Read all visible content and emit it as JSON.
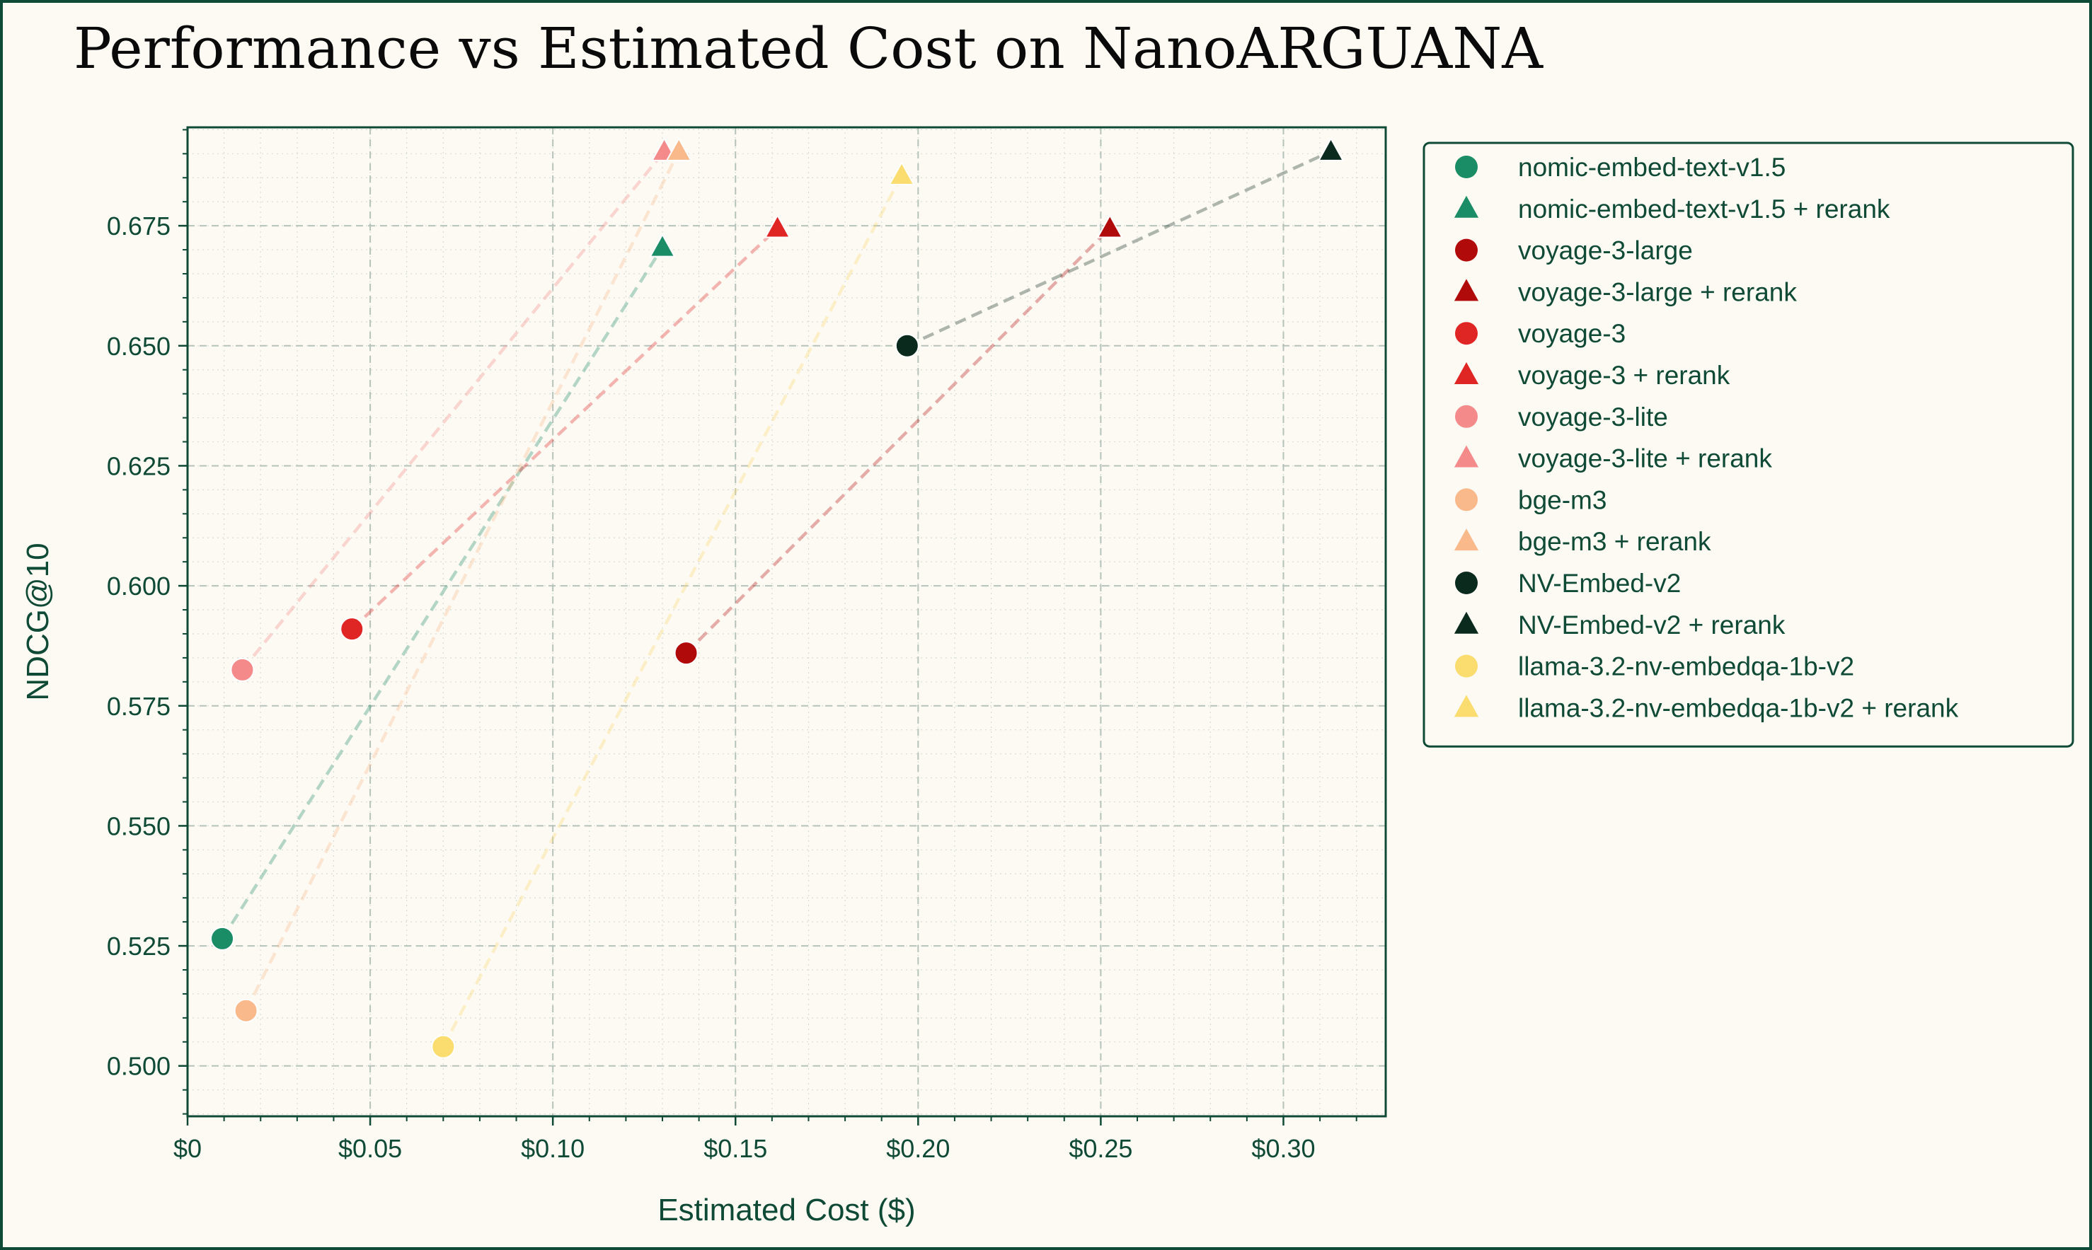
{
  "chart_data": {
    "type": "scatter",
    "title": "Performance vs Estimated Cost on NanoARGUANA",
    "xlabel": "Estimated Cost ($)",
    "ylabel": "NDCG@10",
    "xlim": [
      0,
      0.328
    ],
    "ylim": [
      0.4895,
      0.6955
    ],
    "x_ticks": [
      0,
      0.05,
      0.1,
      0.15,
      0.2,
      0.25,
      0.3
    ],
    "x_tick_labels": [
      "$0",
      "$0.05",
      "$0.10",
      "$0.15",
      "$0.20",
      "$0.25",
      "$0.30"
    ],
    "y_ticks": [
      0.5,
      0.525,
      0.55,
      0.575,
      0.6,
      0.625,
      0.65,
      0.675
    ],
    "y_tick_labels": [
      "0.500",
      "0.525",
      "0.550",
      "0.575",
      "0.600",
      "0.625",
      "0.650",
      "0.675"
    ],
    "grid": true,
    "legend_position": "outside-right",
    "series": [
      {
        "name": "nomic-embed-text-v1.5",
        "marker": "circle",
        "color": "#1a8c66",
        "x": 0.0095,
        "y": 0.5265
      },
      {
        "name": "nomic-embed-text-v1.5 + rerank",
        "marker": "triangle",
        "color": "#1a8c66",
        "x": 0.13,
        "y": 0.6705
      },
      {
        "name": "voyage-3-large",
        "marker": "circle",
        "color": "#b00a0a",
        "x": 0.1365,
        "y": 0.586
      },
      {
        "name": "voyage-3-large + rerank",
        "marker": "triangle",
        "color": "#b00a0a",
        "x": 0.2525,
        "y": 0.6745
      },
      {
        "name": "voyage-3",
        "marker": "circle",
        "color": "#e02525",
        "x": 0.045,
        "y": 0.591
      },
      {
        "name": "voyage-3 + rerank",
        "marker": "triangle",
        "color": "#e02525",
        "x": 0.1615,
        "y": 0.6745
      },
      {
        "name": "voyage-3-lite",
        "marker": "circle",
        "color": "#f48a8a",
        "x": 0.015,
        "y": 0.5825
      },
      {
        "name": "voyage-3-lite + rerank",
        "marker": "triangle",
        "color": "#f48a8a",
        "x": 0.1305,
        "y": 0.6905
      },
      {
        "name": "bge-m3",
        "marker": "circle",
        "color": "#f9b98a",
        "x": 0.016,
        "y": 0.5115
      },
      {
        "name": "bge-m3 + rerank",
        "marker": "triangle",
        "color": "#f9b98a",
        "x": 0.1345,
        "y": 0.6905
      },
      {
        "name": "NV-Embed-v2",
        "marker": "circle",
        "color": "#0b2a1e",
        "x": 0.197,
        "y": 0.65
      },
      {
        "name": "NV-Embed-v2 + rerank",
        "marker": "triangle",
        "color": "#0b2a1e",
        "x": 0.313,
        "y": 0.6905
      },
      {
        "name": "llama-3.2-nv-embedqa-1b-v2",
        "marker": "circle",
        "color": "#fbdc6e",
        "x": 0.07,
        "y": 0.504
      },
      {
        "name": "llama-3.2-nv-embedqa-1b-v2 + rerank",
        "marker": "triangle",
        "color": "#fbdc6e",
        "x": 0.1955,
        "y": 0.6855
      }
    ],
    "connections": [
      [
        0,
        1
      ],
      [
        2,
        3
      ],
      [
        4,
        5
      ],
      [
        6,
        7
      ],
      [
        8,
        9
      ],
      [
        10,
        11
      ],
      [
        12,
        13
      ]
    ]
  },
  "colors": {
    "frame": "#0e4a35",
    "background": "#fdf9f3",
    "grid": "#cdd6cf",
    "axis": "#0e4a35"
  }
}
